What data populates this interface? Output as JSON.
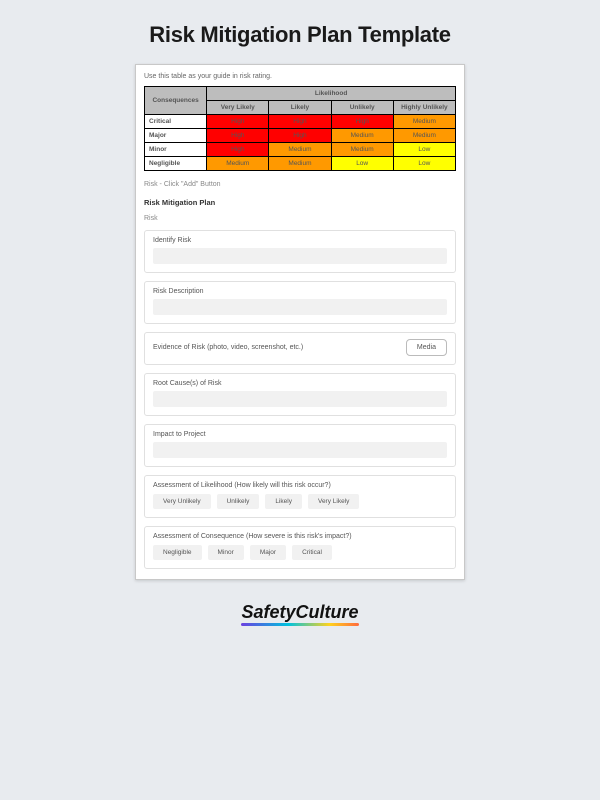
{
  "title": "Risk Mitigation Plan Template",
  "instruction": "Use this table as your guide in risk rating.",
  "matrix": {
    "corner": "Consequences",
    "colgroup": "Likelihood",
    "cols": [
      "Very Likely",
      "Likely",
      "Unlikely",
      "Highly Unlikely"
    ],
    "rows": [
      "Critical",
      "Major",
      "Minor",
      "Negligible"
    ],
    "cells": [
      [
        {
          "t": "High",
          "c": "#ff0000"
        },
        {
          "t": "High",
          "c": "#ff0000"
        },
        {
          "t": "High",
          "c": "#ff0000"
        },
        {
          "t": "Medium",
          "c": "#ff9900"
        }
      ],
      [
        {
          "t": "High",
          "c": "#ff0000"
        },
        {
          "t": "High",
          "c": "#ff0000"
        },
        {
          "t": "Medium",
          "c": "#ff9900"
        },
        {
          "t": "Medium",
          "c": "#ff9900"
        }
      ],
      [
        {
          "t": "High",
          "c": "#ff0000"
        },
        {
          "t": "Medium",
          "c": "#ff9900"
        },
        {
          "t": "Medium",
          "c": "#ff9900"
        },
        {
          "t": "Low",
          "c": "#ffff00"
        }
      ],
      [
        {
          "t": "Medium",
          "c": "#ff9900"
        },
        {
          "t": "Medium",
          "c": "#ff9900"
        },
        {
          "t": "Low",
          "c": "#ffff00"
        },
        {
          "t": "Low",
          "c": "#ffff00"
        }
      ]
    ]
  },
  "hint": "Risk - Click \"Add\" Button",
  "plan_title": "Risk Mitigation Plan",
  "risk_label": "Risk",
  "fields": {
    "identify": "Identify Risk",
    "description": "Risk Description",
    "evidence": "Evidence of Risk (photo, video, screenshot, etc.)",
    "media_btn": "Media",
    "root": "Root Cause(s) of Risk",
    "impact": "Impact to Project"
  },
  "likelihood": {
    "label": "Assessment of Likelihood (How likely will this risk occur?)",
    "options": [
      "Very Unlikely",
      "Unlikely",
      "Likely",
      "Very Likely"
    ]
  },
  "consequence": {
    "label": "Assessment of Consequence (How severe is this risk's impact?)",
    "options": [
      "Negligible",
      "Minor",
      "Major",
      "Critical"
    ]
  },
  "brand": "SafetyCulture"
}
